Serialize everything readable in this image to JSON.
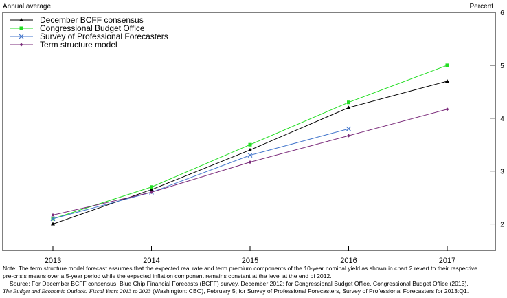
{
  "chart_data": {
    "type": "line",
    "ylabel_left": "Annual average",
    "ylabel_right": "Percent",
    "categories": [
      "2013",
      "2014",
      "2015",
      "2016",
      "2017"
    ],
    "ylim": [
      1.5,
      6
    ],
    "yticks": [
      2,
      3,
      4,
      5,
      6
    ],
    "grid": false,
    "legend_position": "top-left",
    "series": [
      {
        "name": "December BCFF consensus",
        "color": "#000000",
        "marker": "triangle",
        "values": [
          2.0,
          2.65,
          3.4,
          4.2,
          4.7
        ]
      },
      {
        "name": "Congressional Budget Office",
        "color": "#22dd22",
        "marker": "square",
        "values": [
          2.1,
          2.7,
          3.5,
          4.3,
          5.0
        ]
      },
      {
        "name": "Survey of Professional Forecasters",
        "color": "#4477cc",
        "marker": "x",
        "values": [
          2.1,
          2.6,
          3.3,
          3.8,
          null
        ]
      },
      {
        "name": "Term structure model",
        "color": "#7a2a7a",
        "marker": "diamond",
        "values": [
          2.17,
          2.6,
          3.17,
          3.67,
          4.17
        ]
      }
    ]
  },
  "notes": {
    "line1": "Note:  The term structure model forecast assumes that the expected real rate and term premium components of the 10-year nominal yield as shown in chart 2 revert to their respective",
    "line2": "pre-crisis means over a 5-year period while the expected inflation component remains constant at the level at the end of 2012.",
    "line3": "Source:  For December BCFF consensus, Blue Chip Financial Forecasts (BCFF) survey, December 2012; for Congressional Budget Office, Congressional Budget Office (2013),",
    "line4_italic": "The Budget and Economic Outlook:  Fiscal Years 2013 to 2023",
    "line4_rest": " (Washington:  CBO), February 5; for Survey of Professional Forecasters, Survey of Professional Forecasters for 2013:Q1."
  }
}
